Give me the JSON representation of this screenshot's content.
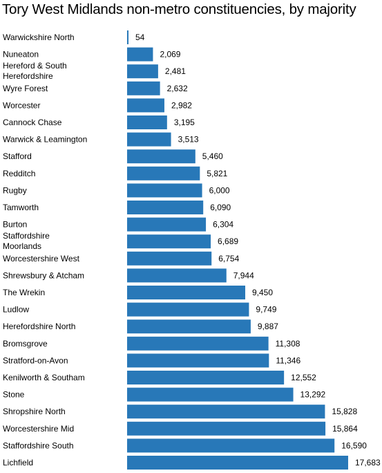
{
  "chart_data": {
    "type": "bar",
    "orientation": "horizontal",
    "title": "Tory West Midlands non-metro constituencies, by majority",
    "xlabel": "",
    "ylabel": "",
    "bar_color": "#2878b8",
    "xlim": [
      0,
      17683
    ],
    "grid": false,
    "categories": [
      "Warwickshire North",
      "Nuneaton",
      "Hereford & South Herefordshire",
      "Wyre Forest",
      "Worcester",
      "Cannock Chase",
      "Warwick & Leamington",
      "Stafford",
      "Redditch",
      "Rugby",
      "Tamworth",
      "Burton",
      "Staffordshire Moorlands",
      "Worcestershire West",
      "Shrewsbury & Atcham",
      "The Wrekin",
      "Ludlow",
      "Herefordshire North",
      "Bromsgrove",
      "Stratford-on-Avon",
      "Kenilworth & Southam",
      "Stone",
      "Shropshire North",
      "Worcestershire Mid",
      "Staffordshire South",
      "Lichfield"
    ],
    "values": [
      54,
      2069,
      2481,
      2632,
      2982,
      3195,
      3513,
      5460,
      5821,
      6000,
      6090,
      6304,
      6689,
      6754,
      7944,
      9450,
      9749,
      9887,
      11308,
      11346,
      12552,
      13292,
      15828,
      15864,
      16590,
      17683
    ],
    "value_labels": [
      "54",
      "2,069",
      "2,481",
      "2,632",
      "2,982",
      "3,195",
      "3,513",
      "5,460",
      "5,821",
      "6,000",
      "6,090",
      "6,304",
      "6,689",
      "6,754",
      "7,944",
      "9,450",
      "9,749",
      "9,887",
      "11,308",
      "11,346",
      "12,552",
      "13,292",
      "15,828",
      "15,864",
      "16,590",
      "17,683"
    ]
  }
}
